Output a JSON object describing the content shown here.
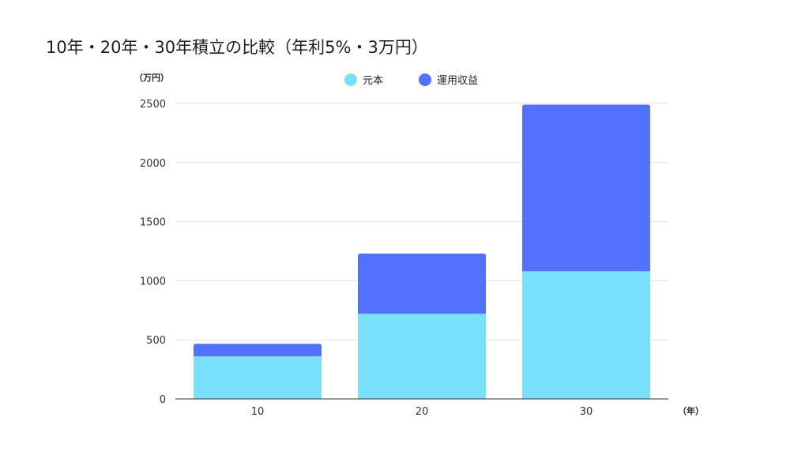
{
  "chart_data": {
    "type": "bar",
    "stacked": true,
    "title": "10年・20年・30年積立の比較（年利5%・3万円）",
    "y_unit_label": "（万円）",
    "x_unit_label": "（年）",
    "categories": [
      "10",
      "20",
      "30"
    ],
    "series": [
      {
        "name": "元本",
        "color": "#79e0fc",
        "values": [
          360,
          720,
          1080
        ]
      },
      {
        "name": "運用収益",
        "color": "#5271ff",
        "values": [
          106,
          510,
          1410
        ]
      }
    ],
    "ylim": [
      0,
      2500
    ],
    "yticks": [
      "0",
      "500",
      "1000",
      "1500",
      "2000",
      "2500"
    ],
    "grid": true,
    "legend": "top-center"
  }
}
